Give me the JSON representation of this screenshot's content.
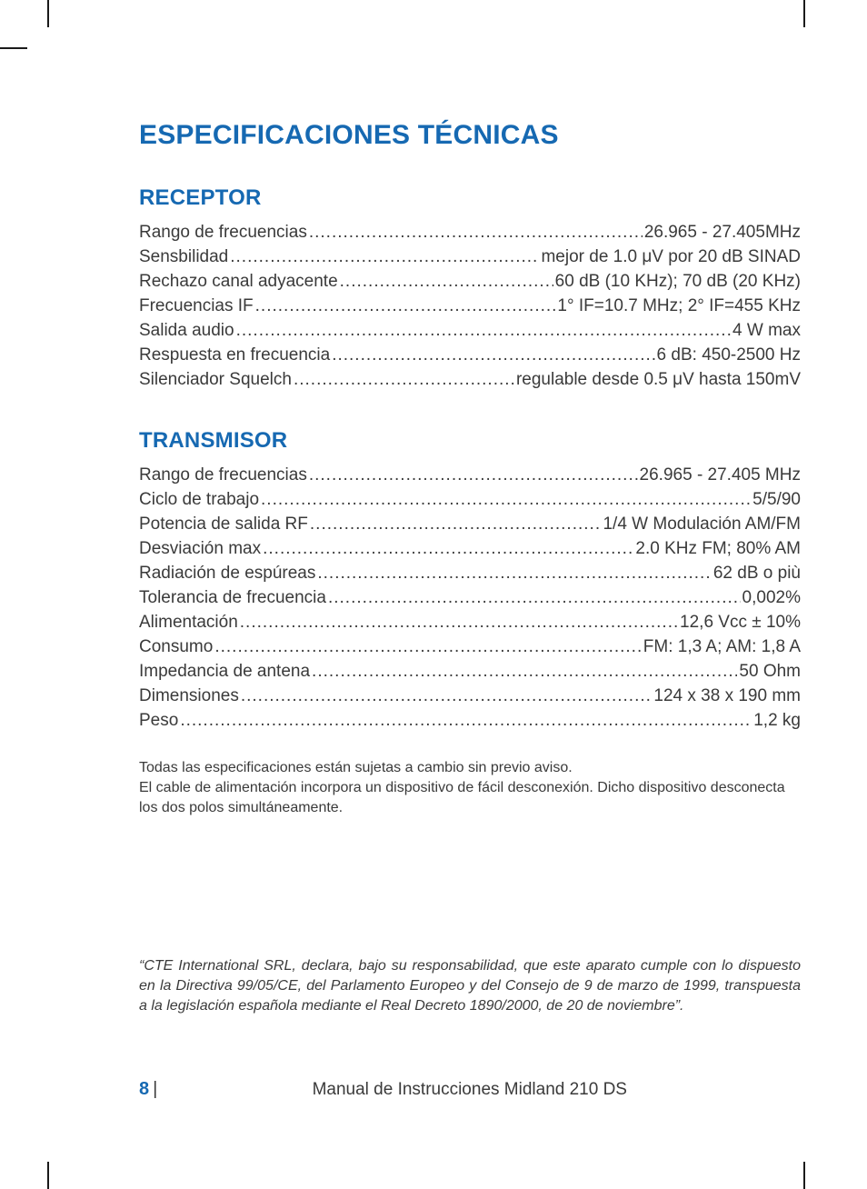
{
  "colors": {
    "accent": "#1669b2",
    "text": "#3a3a3a",
    "background": "#ffffff",
    "crop_mark": "#1a1a1a"
  },
  "typography": {
    "title_fontsize": 30,
    "section_fontsize": 24,
    "body_fontsize": 19,
    "note_fontsize": 16,
    "footer_fontsize": 19,
    "line_height_body": 27
  },
  "page": {
    "title": "ESPECIFICACIONES TÉCNICAS",
    "page_number": "8",
    "page_separator": " |",
    "footer_title": "Manual de Instrucciones Midland 210 DS"
  },
  "sections": [
    {
      "heading": "RECEPTOR",
      "rows": [
        {
          "label": "Rango de frecuencias",
          "value": " 26.965 - 27.405MHz"
        },
        {
          "label": "Sensbilidad ",
          "value": "mejor de 1.0 μV por 20 dB SINAD"
        },
        {
          "label": "Rechazo canal adyacente ",
          "value": " 60 dB (10 KHz); 70 dB (20 KHz)"
        },
        {
          "label": "Frecuencias IF ",
          "value": "1° IF=10.7 MHz; 2° IF=455 KHz"
        },
        {
          "label": "Salida audio",
          "value": " 4 W max"
        },
        {
          "label": "Respuesta en frecuencia",
          "value": " 6 dB: 450-2500 Hz"
        },
        {
          "label": "Silenciador Squelch",
          "value": "regulable desde 0.5 μV hasta 150mV"
        }
      ]
    },
    {
      "heading": "TRANSMISOR",
      "rows": [
        {
          "label": "Rango de frecuencias",
          "value": "26.965 - 27.405 MHz"
        },
        {
          "label": "Ciclo de trabajo",
          "value": " 5/5/90"
        },
        {
          "label": "Potencia de salida RF ",
          "value": " 1/4 W Modulación AM/FM"
        },
        {
          "label": "Desviación max",
          "value": "2.0 KHz FM; 80% AM"
        },
        {
          "label": "Radiación de espúreas",
          "value": "62 dB o più"
        },
        {
          "label": "Tolerancia de frecuencia",
          "value": "0,002%"
        },
        {
          "label": "Alimentación",
          "value": "12,6 Vcc ± 10%"
        },
        {
          "label": "Consumo ",
          "value": " FM: 1,3 A; AM: 1,8 A"
        },
        {
          "label": "Impedancia de antena",
          "value": " 50 Ohm"
        },
        {
          "label": "Dimensiones ",
          "value": " 124 x 38 x 190 mm"
        },
        {
          "label": "Peso",
          "value": " 1,2 kg"
        }
      ]
    }
  ],
  "notes": [
    "Todas las especificaciones están sujetas a cambio sin previo aviso.",
    "El cable de alimentación incorpora un dispositivo de fácil desconexión. Dicho dispositivo desconecta los dos polos simultáneamente."
  ],
  "declaration": "“CTE International SRL, declara, bajo su responsabilidad, que este aparato cumple con lo dispuesto en la Directiva 99/05/CE, del Parlamento Europeo y del Consejo de 9 de marzo de 1999, transpuesta a la legislación española mediante el Real Decreto 1890/2000, de 20 de noviembre”."
}
